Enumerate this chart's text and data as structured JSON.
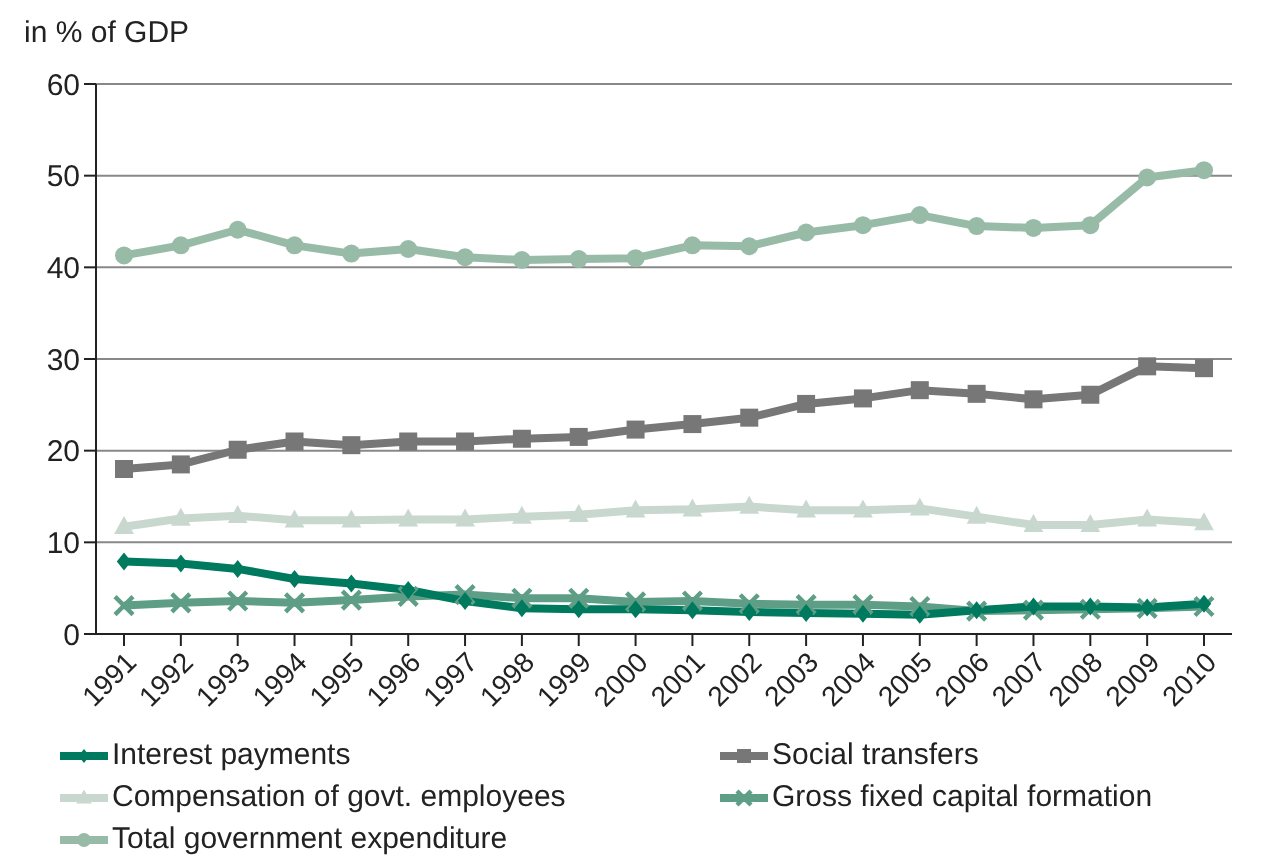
{
  "chart_data": {
    "type": "line",
    "ylabel": "in % of GDP",
    "categories": [
      "1991",
      "1992",
      "1993",
      "1994",
      "1995",
      "1996",
      "1997",
      "1998",
      "1999",
      "2000",
      "2001",
      "2002",
      "2003",
      "2004",
      "2005",
      "2006",
      "2007",
      "2008",
      "2009",
      "2010"
    ],
    "series": [
      {
        "name": "Interest payments",
        "color": "#007a5e",
        "marker": "diamond",
        "values": [
          7.9,
          7.7,
          7.1,
          6.0,
          5.5,
          4.8,
          3.6,
          2.8,
          2.7,
          2.7,
          2.6,
          2.4,
          2.3,
          2.2,
          2.1,
          2.6,
          3.0,
          3.0,
          2.9,
          3.3
        ]
      },
      {
        "name": "Social transfers",
        "color": "#777777",
        "marker": "square",
        "values": [
          18.0,
          18.5,
          20.1,
          21.0,
          20.6,
          21.0,
          21.0,
          21.3,
          21.5,
          22.3,
          22.9,
          23.6,
          25.1,
          25.7,
          26.6,
          26.2,
          25.6,
          26.1,
          29.2,
          29.0
        ]
      },
      {
        "name": "Compensation of govt. employees",
        "color": "#c8d8cf",
        "marker": "triangle",
        "values": [
          11.7,
          12.6,
          12.9,
          12.4,
          12.4,
          12.5,
          12.5,
          12.8,
          13.0,
          13.5,
          13.6,
          13.9,
          13.5,
          13.5,
          13.7,
          12.8,
          11.9,
          11.9,
          12.5,
          12.1
        ]
      },
      {
        "name": "Gross fixed capital formation",
        "color": "#5f9e86",
        "marker": "cross",
        "values": [
          3.1,
          3.4,
          3.6,
          3.4,
          3.7,
          4.1,
          4.3,
          3.9,
          3.9,
          3.5,
          3.6,
          3.3,
          3.2,
          3.2,
          3.0,
          2.5,
          2.6,
          2.7,
          2.8,
          3.0
        ]
      },
      {
        "name": "Total government expenditure",
        "color": "#98bba8",
        "marker": "circle",
        "values": [
          41.3,
          42.4,
          44.1,
          42.4,
          41.5,
          42.0,
          41.1,
          40.8,
          40.9,
          41.0,
          42.4,
          42.3,
          43.8,
          44.6,
          45.7,
          44.5,
          44.3,
          44.6,
          49.8,
          50.6
        ]
      }
    ],
    "ylim": [
      0,
      60
    ],
    "yticks": [
      0,
      10,
      20,
      30,
      40,
      50,
      60
    ],
    "grid": "y",
    "legend": "bottom",
    "line_style": "solid"
  }
}
